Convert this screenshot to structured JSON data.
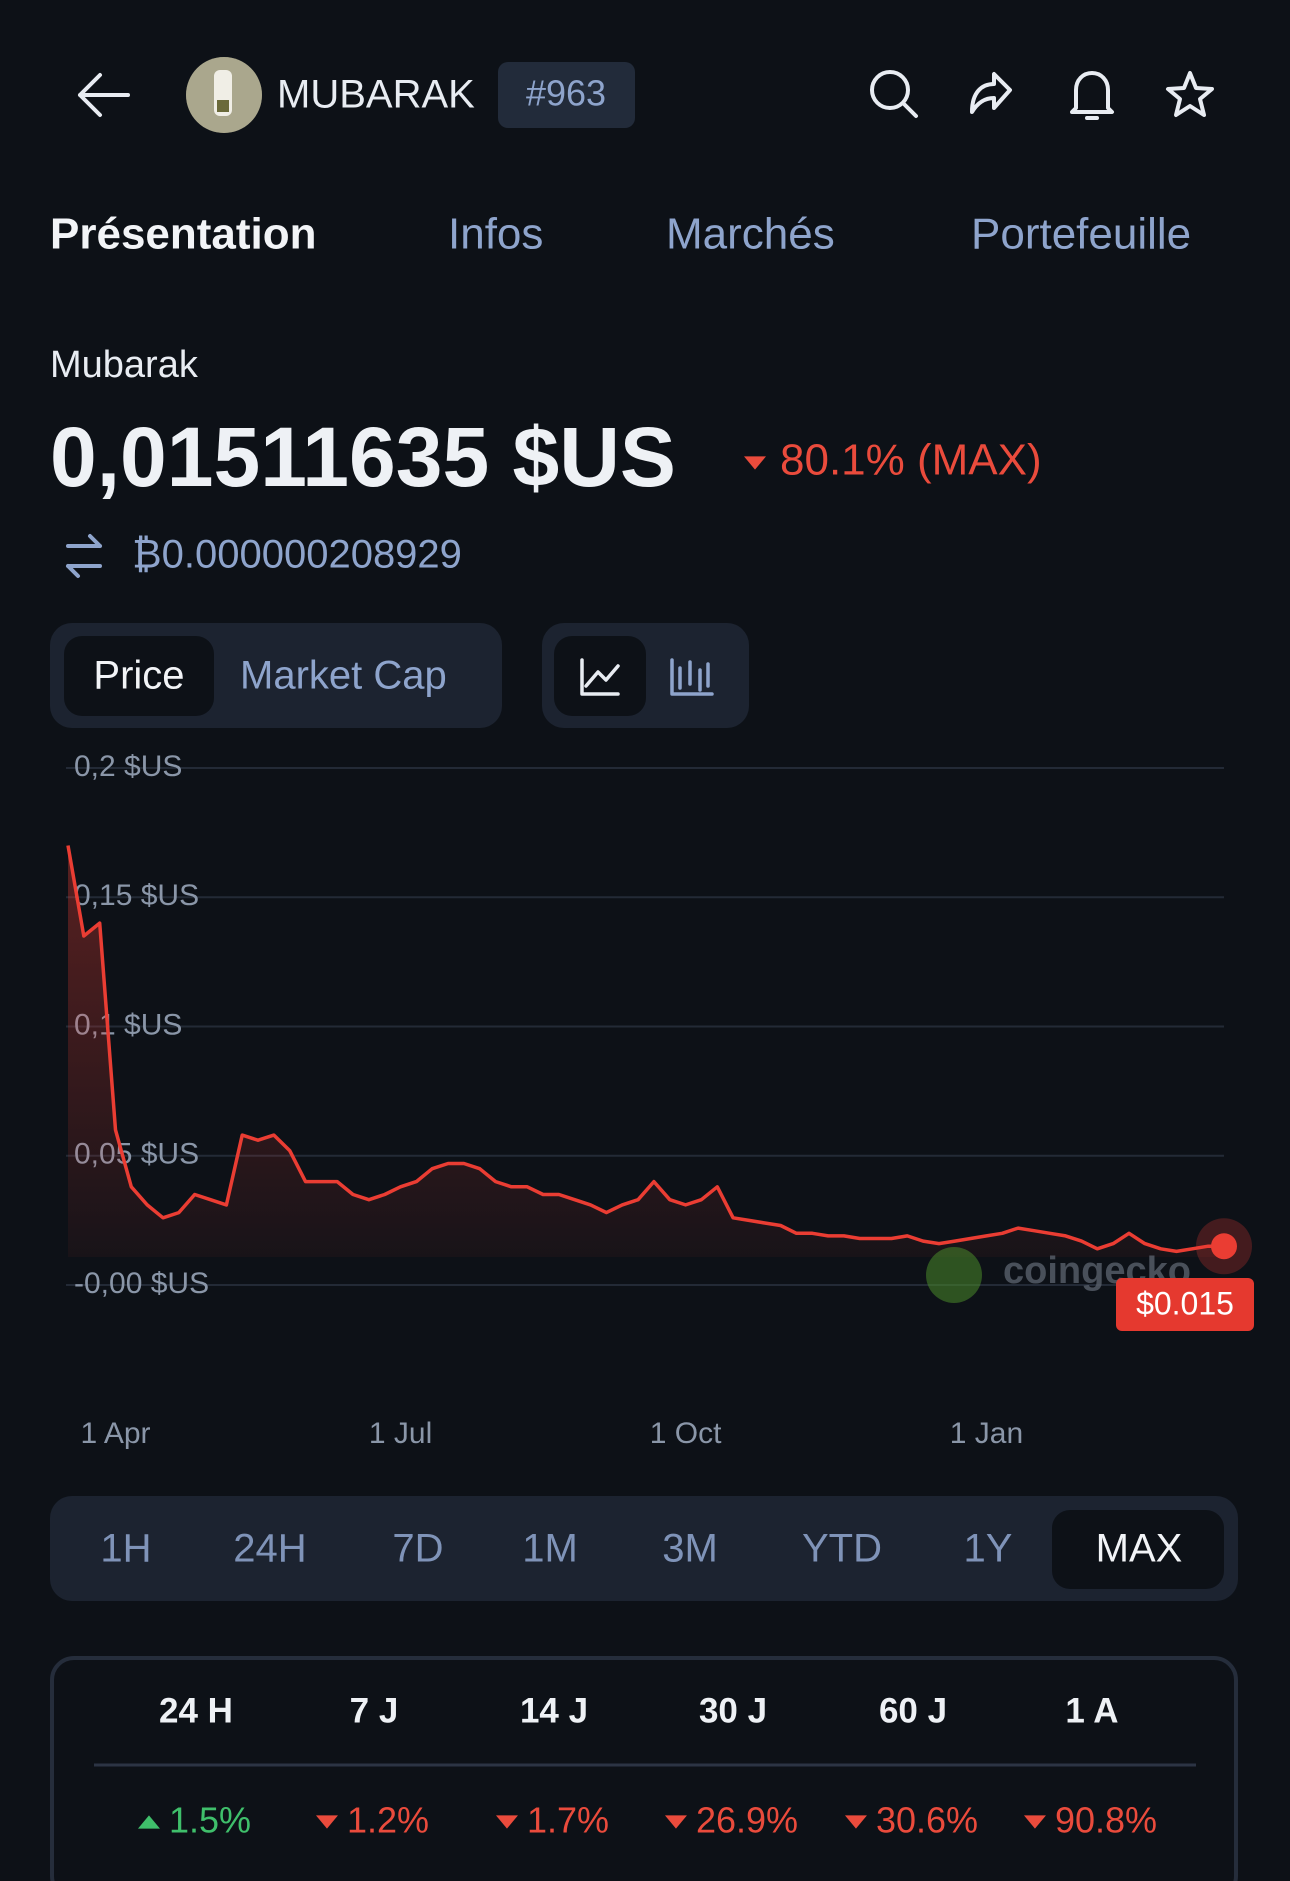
{
  "header": {
    "symbol": "MUBARAK",
    "rank": "#963"
  },
  "tabs": [
    "Présentation",
    "Infos",
    "Marchés",
    "Portefeuille"
  ],
  "coin": {
    "name": "Mubarak",
    "price": "0,01511635 $US",
    "change": "80.1% (MAX)",
    "change_direction": "down",
    "btc_price": "₿0.000000208929"
  },
  "chart_controls": {
    "metrics": [
      "Price",
      "Market Cap"
    ]
  },
  "chart_data": {
    "type": "line",
    "categories": [
      null,
      null,
      null,
      "1 Apr",
      null,
      null,
      null,
      null,
      null,
      null,
      null,
      null,
      null,
      null,
      null,
      null,
      null,
      null,
      null,
      null,
      null,
      "1 Jul",
      null,
      null,
      null,
      null,
      null,
      null,
      null,
      null,
      null,
      null,
      null,
      null,
      null,
      null,
      null,
      null,
      null,
      "1 Oct",
      null,
      null,
      null,
      null,
      null,
      null,
      null,
      null,
      null,
      null,
      null,
      null,
      null,
      null,
      null,
      null,
      null,
      null,
      "1 Jan",
      null,
      null,
      null,
      null,
      null,
      null,
      null,
      null,
      null,
      null,
      null,
      null,
      null,
      null,
      null
    ],
    "series": [
      {
        "color": "#ea3d33",
        "values": [
          0.17,
          0.135,
          0.14,
          0.06,
          0.038,
          0.031,
          0.026,
          0.028,
          0.035,
          0.033,
          0.031,
          0.058,
          0.056,
          0.058,
          0.052,
          0.04,
          0.04,
          0.04,
          0.035,
          0.033,
          0.035,
          0.038,
          0.04,
          0.045,
          0.047,
          0.047,
          0.045,
          0.04,
          0.038,
          0.038,
          0.035,
          0.035,
          0.033,
          0.031,
          0.028,
          0.031,
          0.033,
          0.04,
          0.033,
          0.031,
          0.033,
          0.038,
          0.026,
          0.025,
          0.024,
          0.023,
          0.02,
          0.02,
          0.019,
          0.019,
          0.018,
          0.018,
          0.018,
          0.019,
          0.017,
          0.016,
          0.017,
          0.018,
          0.019,
          0.02,
          0.022,
          0.021,
          0.02,
          0.019,
          0.017,
          0.014,
          0.016,
          0.02,
          0.016,
          0.014,
          0.013,
          0.014,
          0.015,
          0.015
        ],
        "value_labels": [
          null,
          null,
          null,
          null,
          null,
          null,
          null,
          null,
          null,
          null,
          null,
          null,
          null,
          null,
          null,
          null,
          null,
          null,
          null,
          null,
          null,
          null,
          null,
          null,
          null,
          null,
          null,
          null,
          null,
          null,
          null,
          null,
          null,
          null,
          null,
          null,
          null,
          null,
          null,
          null,
          null,
          null,
          null,
          null,
          null,
          null,
          null,
          null,
          null,
          null,
          null,
          null,
          null,
          null,
          null,
          null,
          null,
          null,
          null,
          null,
          null,
          null,
          null,
          null,
          null,
          null,
          null,
          null,
          null,
          null,
          null,
          null,
          null,
          "$0.015"
        ]
      }
    ],
    "ylim": [
      0,
      0.2
    ],
    "yticks": [
      {
        "value": 0,
        "label": "-0,00 $US"
      },
      {
        "value": 0.05,
        "label": "0,05 $US"
      },
      {
        "value": 0.1,
        "label": "0,1 $US"
      },
      {
        "value": 0.15,
        "label": "0,15 $US"
      },
      {
        "value": 0.2,
        "label": "0,2 $US"
      }
    ],
    "grid": true,
    "watermark": "coingecko"
  },
  "ranges": [
    "1H",
    "24H",
    "7D",
    "1M",
    "3M",
    "YTD",
    "1Y",
    "MAX"
  ],
  "performance": {
    "periods": [
      "24 H",
      "7 J",
      "14 J",
      "30 J",
      "60 J",
      "1 A"
    ],
    "changes": [
      {
        "text": "1.5%",
        "direction": "up"
      },
      {
        "text": "1.2%",
        "direction": "down"
      },
      {
        "text": "1.7%",
        "direction": "down"
      },
      {
        "text": "26.9%",
        "direction": "down"
      },
      {
        "text": "30.6%",
        "direction": "down"
      },
      {
        "text": "90.8%",
        "direction": "down"
      }
    ]
  }
}
